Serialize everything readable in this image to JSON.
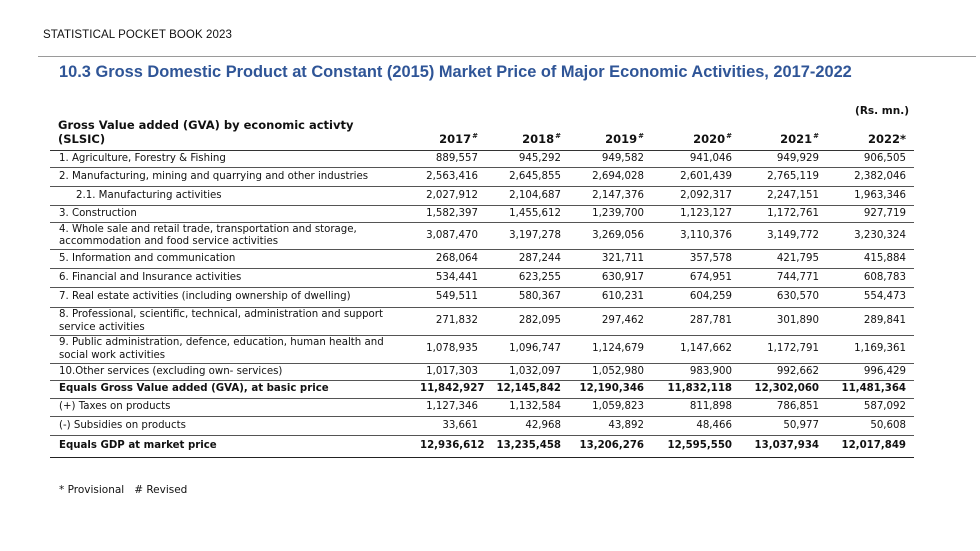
{
  "header": {
    "book_title": "STATISTICAL POCKET BOOK 2023"
  },
  "title": "10.3 Gross Domestic Product at Constant (2015) Market Price of Major Economic Activities, 2017-2022",
  "units": "(Rs. mn.)",
  "table": {
    "label_header": "Gross Value added (GVA) by economic activty (SLSIC)",
    "years": [
      {
        "year": "2017",
        "mark": "#"
      },
      {
        "year": "2018",
        "mark": "#"
      },
      {
        "year": "2019",
        "mark": "#"
      },
      {
        "year": "2020",
        "mark": "#"
      },
      {
        "year": "2021",
        "mark": "#"
      },
      {
        "year": "2022*",
        "mark": ""
      }
    ],
    "rows": [
      {
        "label": "1.  Agriculture, Forestry & Fishing",
        "values": [
          "889,557",
          "945,292",
          "949,582",
          "941,046",
          "949,929",
          "906,505"
        ]
      },
      {
        "label": "2. Manufacturing, mining and quarrying and other industries",
        "values": [
          "2,563,416",
          "2,645,855",
          "2,694,028",
          "2,601,439",
          "2,765,119",
          "2,382,046"
        ]
      },
      {
        "label": "2.1. Manufacturing activities",
        "values": [
          "2,027,912",
          "2,104,687",
          "2,147,376",
          "2,092,317",
          "2,247,151",
          "1,963,346"
        ]
      },
      {
        "label": "3. Construction",
        "values": [
          "1,582,397",
          "1,455,612",
          "1,239,700",
          "1,123,127",
          "1,172,761",
          "927,719"
        ]
      },
      {
        "label": "4. Whole sale and retail trade, transportation and storage, accommodation and food service activities",
        "values": [
          "3,087,470",
          "3,197,278",
          "3,269,056",
          "3,110,376",
          "3,149,772",
          "3,230,324"
        ]
      },
      {
        "label": "5. Information and communication",
        "values": [
          "268,064",
          "287,244",
          "321,711",
          "357,578",
          "421,795",
          "415,884"
        ]
      },
      {
        "label": "6. Financial and Insurance activities",
        "values": [
          "534,441",
          "623,255",
          "630,917",
          "674,951",
          "744,771",
          "608,783"
        ]
      },
      {
        "label": "7. Real estate activities (including ownership of dwelling)",
        "values": [
          "549,511",
          "580,367",
          "610,231",
          "604,259",
          "630,570",
          "554,473"
        ]
      },
      {
        "label": "8. Professional, scientific, technical, administration and support service activities",
        "values": [
          "271,832",
          "282,095",
          "297,462",
          "287,781",
          "301,890",
          "289,841"
        ]
      },
      {
        "label": "9. Public administration, defence, education, human health and social work activities",
        "values": [
          "1,078,935",
          "1,096,747",
          "1,124,679",
          "1,147,662",
          "1,172,791",
          "1,169,361"
        ]
      },
      {
        "label": "10.Other services (excluding own- services)",
        "values": [
          "1,017,303",
          "1,032,097",
          "1,052,980",
          "983,900",
          "992,662",
          "996,429"
        ]
      },
      {
        "label": "Equals Gross Value added (GVA), at basic price",
        "values": [
          "11,842,927",
          "12,145,842",
          "12,190,346",
          "11,832,118",
          "12,302,060",
          "11,481,364"
        ]
      },
      {
        "label": "(+) Taxes on products",
        "values": [
          "1,127,346",
          "1,132,584",
          "1,059,823",
          "811,898",
          "786,851",
          "587,092"
        ]
      },
      {
        "label": "(-) Subsidies on products",
        "values": [
          "33,661",
          "42,968",
          "43,892",
          "48,466",
          "50,977",
          "50,608"
        ]
      },
      {
        "label": "Equals GDP at market price",
        "values": [
          "12,936,612",
          "13,235,458",
          "13,206,276",
          "12,595,550",
          "13,037,934",
          "12,017,849"
        ]
      }
    ]
  },
  "footnote": {
    "provisional": "* Provisional",
    "revised": "# Revised"
  }
}
